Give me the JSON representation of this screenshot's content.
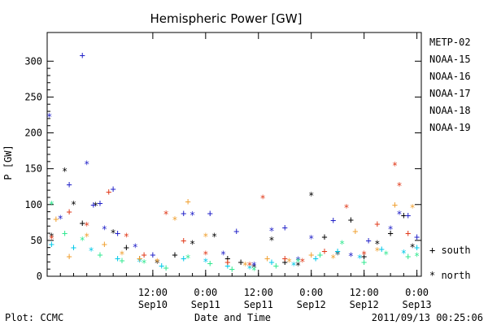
{
  "chart_data": {
    "type": "scatter",
    "title": "Hemispheric Power [GW]",
    "ylabel": "P [GW]",
    "xlabel": "Date and Time",
    "ylim": [
      0,
      340
    ],
    "xlim": [
      "2011-09-09T12:00",
      "2011-09-13T01:00"
    ],
    "yticks": [
      0,
      50,
      100,
      150,
      200,
      250,
      300
    ],
    "xtick_labels": [
      {
        "at": "2011-09-10T12:00",
        "time": "12:00",
        "date": "Sep10"
      },
      {
        "at": "2011-09-11T00:00",
        "time": "0:00",
        "date": "Sep11"
      },
      {
        "at": "2011-09-11T12:00",
        "time": "12:00",
        "date": "Sep11"
      },
      {
        "at": "2011-09-12T00:00",
        "time": "0:00",
        "date": "Sep12"
      },
      {
        "at": "2011-09-12T12:00",
        "time": "12:00",
        "date": "Sep12"
      },
      {
        "at": "2011-09-13T00:00",
        "time": "0:00",
        "date": "Sep13"
      }
    ],
    "legend": {
      "placement": "right",
      "marker_south": "+ south",
      "marker_north": "* north"
    },
    "series": [
      {
        "name": "METP-02",
        "color": "#000000",
        "points": [
          [
            "2011-09-09T13:00",
            55,
            "n"
          ],
          [
            "2011-09-09T16:00",
            146,
            "n"
          ],
          [
            "2011-09-09T18:00",
            100,
            "n"
          ],
          [
            "2011-09-09T20:00",
            74,
            "s"
          ],
          [
            "2011-09-09T23:00",
            98,
            "n"
          ],
          [
            "2011-09-10T03:00",
            60,
            "n"
          ],
          [
            "2011-09-10T06:00",
            40,
            "s"
          ],
          [
            "2011-09-10T09:00",
            25,
            "s"
          ],
          [
            "2011-09-10T13:00",
            18,
            "n"
          ],
          [
            "2011-09-10T17:00",
            30,
            "s"
          ],
          [
            "2011-09-10T21:00",
            45,
            "n"
          ],
          [
            "2011-09-11T02:00",
            55,
            "n"
          ],
          [
            "2011-09-11T05:00",
            25,
            "s"
          ],
          [
            "2011-09-11T08:00",
            20,
            "s"
          ],
          [
            "2011-09-11T11:00",
            12,
            "n"
          ],
          [
            "2011-09-11T15:00",
            50,
            "n"
          ],
          [
            "2011-09-11T18:00",
            20,
            "s"
          ],
          [
            "2011-09-11T21:00",
            15,
            "n"
          ],
          [
            "2011-09-12T00:00",
            112,
            "n"
          ],
          [
            "2011-09-12T03:00",
            55,
            "s"
          ],
          [
            "2011-09-12T06:00",
            30,
            "n"
          ],
          [
            "2011-09-12T09:00",
            79,
            "s"
          ],
          [
            "2011-09-12T12:00",
            28,
            "s"
          ],
          [
            "2011-09-12T15:00",
            45,
            "n"
          ],
          [
            "2011-09-12T18:00",
            60,
            "s"
          ],
          [
            "2011-09-12T21:00",
            85,
            "s"
          ],
          [
            "2011-09-12T23:00",
            40,
            "n"
          ]
        ]
      },
      {
        "name": "NOAA-15",
        "color": "#2020c8",
        "points": [
          [
            "2011-09-09T12:30",
            222,
            "n"
          ],
          [
            "2011-09-09T15:00",
            80,
            "n"
          ],
          [
            "2011-09-09T17:00",
            128,
            "s"
          ],
          [
            "2011-09-09T20:00",
            308,
            "s"
          ],
          [
            "2011-09-09T21:00",
            156,
            "n"
          ],
          [
            "2011-09-09T22:30",
            100,
            "s"
          ],
          [
            "2011-09-10T00:00",
            102,
            "s"
          ],
          [
            "2011-09-10T01:00",
            65,
            "n"
          ],
          [
            "2011-09-10T03:00",
            122,
            "s"
          ],
          [
            "2011-09-10T04:00",
            60,
            "s"
          ],
          [
            "2011-09-10T08:00",
            40,
            "n"
          ],
          [
            "2011-09-10T12:00",
            30,
            "s"
          ],
          [
            "2011-09-10T19:00",
            88,
            "s"
          ],
          [
            "2011-09-10T21:00",
            85,
            "n"
          ],
          [
            "2011-09-11T01:00",
            88,
            "s"
          ],
          [
            "2011-09-11T04:00",
            30,
            "n"
          ],
          [
            "2011-09-11T07:00",
            63,
            "s"
          ],
          [
            "2011-09-11T11:00",
            15,
            "n"
          ],
          [
            "2011-09-11T15:00",
            63,
            "n"
          ],
          [
            "2011-09-11T18:00",
            68,
            "s"
          ],
          [
            "2011-09-11T21:00",
            22,
            "n"
          ],
          [
            "2011-09-12T00:00",
            52,
            "n"
          ],
          [
            "2011-09-12T05:00",
            78,
            "s"
          ],
          [
            "2011-09-12T09:00",
            28,
            "n"
          ],
          [
            "2011-09-12T13:00",
            50,
            "s"
          ],
          [
            "2011-09-12T18:00",
            65,
            "n"
          ],
          [
            "2011-09-12T20:00",
            86,
            "n"
          ],
          [
            "2011-09-12T22:00",
            85,
            "s"
          ],
          [
            "2011-09-13T00:00",
            55,
            "s"
          ]
        ]
      },
      {
        "name": "NOAA-16",
        "color": "#00c8e8",
        "points": [
          [
            "2011-09-09T13:00",
            45,
            "s"
          ],
          [
            "2011-09-09T18:00",
            40,
            "s"
          ],
          [
            "2011-09-09T22:00",
            35,
            "n"
          ],
          [
            "2011-09-10T04:00",
            25,
            "s"
          ],
          [
            "2011-09-10T09:00",
            20,
            "n"
          ],
          [
            "2011-09-10T14:00",
            15,
            "s"
          ],
          [
            "2011-09-10T19:00",
            25,
            "s"
          ],
          [
            "2011-09-11T00:00",
            20,
            "n"
          ],
          [
            "2011-09-11T05:00",
            15,
            "s"
          ],
          [
            "2011-09-11T10:00",
            10,
            "n"
          ],
          [
            "2011-09-11T15:00",
            20,
            "s"
          ],
          [
            "2011-09-11T20:00",
            15,
            "n"
          ],
          [
            "2011-09-12T01:00",
            25,
            "s"
          ],
          [
            "2011-09-12T06:00",
            35,
            "s"
          ],
          [
            "2011-09-12T11:00",
            25,
            "n"
          ],
          [
            "2011-09-12T16:00",
            38,
            "s"
          ],
          [
            "2011-09-12T21:00",
            32,
            "n"
          ],
          [
            "2011-09-13T00:00",
            40,
            "s"
          ]
        ]
      },
      {
        "name": "NOAA-17",
        "color": "#30e890",
        "points": [
          [
            "2011-09-09T13:00",
            100,
            "n"
          ],
          [
            "2011-09-09T16:00",
            60,
            "s"
          ],
          [
            "2011-09-09T20:00",
            50,
            "n"
          ],
          [
            "2011-09-10T00:00",
            30,
            "s"
          ],
          [
            "2011-09-10T05:00",
            22,
            "s"
          ],
          [
            "2011-09-10T10:00",
            18,
            "n"
          ],
          [
            "2011-09-10T15:00",
            12,
            "s"
          ],
          [
            "2011-09-10T20:00",
            25,
            "n"
          ],
          [
            "2011-09-11T01:00",
            18,
            "s"
          ],
          [
            "2011-09-11T06:00",
            10,
            "s"
          ],
          [
            "2011-09-11T11:00",
            8,
            "n"
          ],
          [
            "2011-09-11T16:00",
            15,
            "s"
          ],
          [
            "2011-09-11T21:00",
            20,
            "n"
          ],
          [
            "2011-09-12T02:00",
            30,
            "s"
          ],
          [
            "2011-09-12T07:00",
            45,
            "n"
          ],
          [
            "2011-09-12T12:00",
            20,
            "s"
          ],
          [
            "2011-09-12T17:00",
            30,
            "n"
          ],
          [
            "2011-09-12T22:00",
            28,
            "s"
          ],
          [
            "2011-09-13T00:00",
            28,
            "n"
          ]
        ]
      },
      {
        "name": "NOAA-18",
        "color": "#f0a030",
        "points": [
          [
            "2011-09-09T14:00",
            80,
            "s"
          ],
          [
            "2011-09-09T17:00",
            28,
            "s"
          ],
          [
            "2011-09-09T21:00",
            55,
            "n"
          ],
          [
            "2011-09-10T01:00",
            45,
            "s"
          ],
          [
            "2011-09-10T05:00",
            30,
            "n"
          ],
          [
            "2011-09-10T09:00",
            25,
            "s"
          ],
          [
            "2011-09-10T13:00",
            20,
            "n"
          ],
          [
            "2011-09-10T17:00",
            78,
            "n"
          ],
          [
            "2011-09-10T20:00",
            104,
            "s"
          ],
          [
            "2011-09-11T00:00",
            55,
            "n"
          ],
          [
            "2011-09-11T05:00",
            20,
            "s"
          ],
          [
            "2011-09-11T09:00",
            15,
            "n"
          ],
          [
            "2011-09-11T14:00",
            25,
            "s"
          ],
          [
            "2011-09-11T19:00",
            20,
            "n"
          ],
          [
            "2011-09-12T00:00",
            30,
            "s"
          ],
          [
            "2011-09-12T05:00",
            25,
            "n"
          ],
          [
            "2011-09-12T10:00",
            63,
            "s"
          ],
          [
            "2011-09-12T15:00",
            35,
            "n"
          ],
          [
            "2011-09-12T19:00",
            100,
            "s"
          ],
          [
            "2011-09-12T23:00",
            95,
            "n"
          ]
        ]
      },
      {
        "name": "NOAA-19",
        "color": "#e03818",
        "points": [
          [
            "2011-09-09T13:00",
            52,
            "n"
          ],
          [
            "2011-09-09T17:00",
            90,
            "s"
          ],
          [
            "2011-09-09T21:00",
            70,
            "n"
          ],
          [
            "2011-09-10T02:00",
            118,
            "s"
          ],
          [
            "2011-09-10T06:00",
            55,
            "n"
          ],
          [
            "2011-09-10T10:00",
            30,
            "s"
          ],
          [
            "2011-09-10T15:00",
            86,
            "n"
          ],
          [
            "2011-09-10T19:00",
            50,
            "s"
          ],
          [
            "2011-09-11T00:00",
            30,
            "n"
          ],
          [
            "2011-09-11T05:00",
            20,
            "s"
          ],
          [
            "2011-09-11T10:00",
            15,
            "n"
          ],
          [
            "2011-09-11T13:00",
            108,
            "n"
          ],
          [
            "2011-09-11T18:00",
            25,
            "s"
          ],
          [
            "2011-09-11T22:00",
            20,
            "n"
          ],
          [
            "2011-09-12T03:00",
            35,
            "s"
          ],
          [
            "2011-09-12T08:00",
            95,
            "n"
          ],
          [
            "2011-09-12T12:00",
            30,
            "n"
          ],
          [
            "2011-09-12T15:00",
            73,
            "s"
          ],
          [
            "2011-09-12T19:00",
            154,
            "n"
          ],
          [
            "2011-09-12T20:00",
            126,
            "n"
          ],
          [
            "2011-09-12T22:00",
            60,
            "s"
          ]
        ]
      }
    ]
  },
  "footer": {
    "plot_source": "Plot: CCMC",
    "timestamp": "2011/09/13 00:25:06"
  }
}
